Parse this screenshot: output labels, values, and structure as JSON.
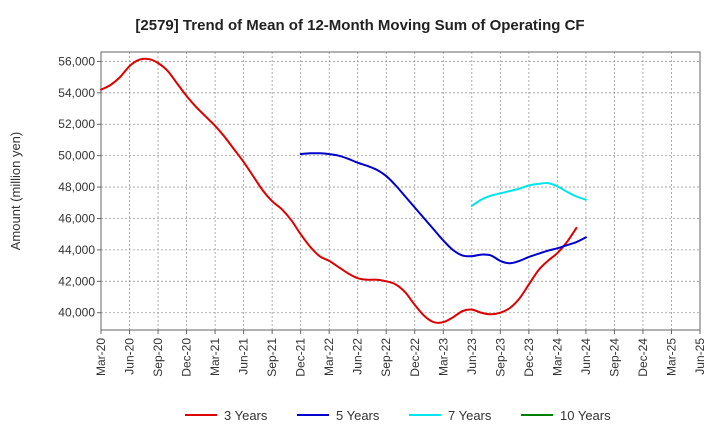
{
  "chart_data": {
    "type": "line",
    "title": "[2579]  Trend of Mean of 12-Month Moving Sum of Operating CF",
    "xlabel": "",
    "ylabel": "Amount (million yen)",
    "x_ticks": [
      "Mar-20",
      "Jun-20",
      "Sep-20",
      "Dec-20",
      "Mar-21",
      "Jun-21",
      "Sep-21",
      "Dec-21",
      "Mar-22",
      "Jun-22",
      "Sep-22",
      "Dec-22",
      "Mar-23",
      "Jun-23",
      "Sep-23",
      "Dec-23",
      "Mar-24",
      "Jun-24",
      "Sep-24",
      "Dec-24",
      "Mar-25",
      "Jun-25"
    ],
    "y_ticks": [
      "40,000",
      "42,000",
      "44,000",
      "46,000",
      "48,000",
      "50,000",
      "52,000",
      "54,000",
      "56,000"
    ],
    "y_tick_values": [
      40000,
      42000,
      44000,
      46000,
      48000,
      50000,
      52000,
      54000,
      56000
    ],
    "ylim": [
      38900,
      56600
    ],
    "grid": true,
    "legend_position": "bottom",
    "series": [
      {
        "name": "3 Years",
        "color": "#dd0000",
        "start_index": 0,
        "values": [
          54200,
          54500,
          55000,
          55700,
          56100,
          56150,
          55900,
          55400,
          54600,
          53800,
          53100,
          52500,
          51900,
          51200,
          50400,
          49600,
          48700,
          47800,
          47100,
          46600,
          45900,
          45000,
          44200,
          43600,
          43300,
          42900,
          42500,
          42200,
          42100,
          42100,
          42000,
          41800,
          41300,
          40500,
          39800,
          39400,
          39400,
          39700,
          40100,
          40200,
          40000,
          39900,
          40000,
          40300,
          40900,
          41800,
          42700,
          43300,
          43800,
          44500,
          45400
        ]
      },
      {
        "name": "5 Years",
        "color": "#0000cc",
        "start_index": 21,
        "values": [
          50100,
          50150,
          50150,
          50100,
          50000,
          49800,
          49550,
          49350,
          49100,
          48700,
          48100,
          47400,
          46700,
          46000,
          45300,
          44600,
          44000,
          43650,
          43600,
          43700,
          43650,
          43300,
          43150,
          43300,
          43550,
          43750,
          43950,
          44100,
          44300,
          44500,
          44800
        ]
      },
      {
        "name": "7 Years",
        "color": "#00e5ee",
        "start_index": 39,
        "values": [
          46800,
          47200,
          47450,
          47600,
          47750,
          47900,
          48100,
          48200,
          48250,
          48050,
          47700,
          47400,
          47200
        ]
      },
      {
        "name": "10 Years",
        "color": "#008000",
        "start_index": 0,
        "values": []
      }
    ]
  }
}
